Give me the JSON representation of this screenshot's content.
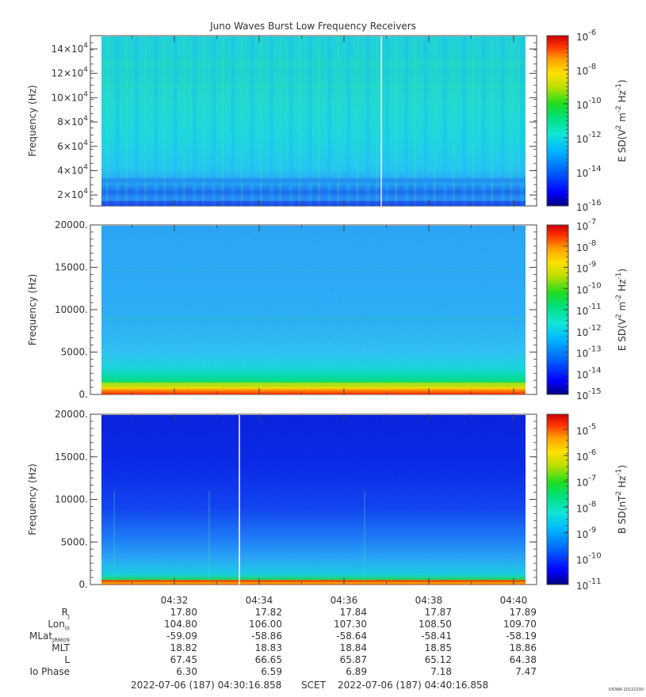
{
  "title": "Juno Waves Burst Low Frequency Receivers",
  "colors": {
    "colormap": [
      "#00007f",
      "#0000ff",
      "#007fff",
      "#00c8ff",
      "#1ee6c8",
      "#00e070",
      "#20e020",
      "#c0e000",
      "#ffe000",
      "#ffa000",
      "#ff3000",
      "#c80000"
    ]
  },
  "chart_data": [
    {
      "type": "heatmap",
      "name": "panel-1",
      "ylabel": "Frequency (Hz)",
      "ylim": [
        11000,
        151000
      ],
      "yticks": [
        {
          "value": 20000,
          "mant": "2×10",
          "exp": "4"
        },
        {
          "value": 40000,
          "mant": "4×10",
          "exp": "4"
        },
        {
          "value": 60000,
          "mant": "6×10",
          "exp": "4"
        },
        {
          "value": 80000,
          "mant": "8×10",
          "exp": "4"
        },
        {
          "value": 100000,
          "mant": "10×10",
          "exp": "4"
        },
        {
          "value": 120000,
          "mant": "12×10",
          "exp": "4"
        },
        {
          "value": 140000,
          "mant": "14×10",
          "exp": "4"
        }
      ],
      "colorbar": {
        "label_parts": [
          [
            "E SD(V",
            "normal"
          ],
          [
            "2",
            "sup"
          ],
          [
            " m",
            "normal"
          ],
          [
            "-2",
            "sup"
          ],
          [
            " Hz",
            "normal"
          ],
          [
            "-1",
            "sup"
          ],
          [
            ")",
            "normal"
          ]
        ],
        "log_range": [
          -16,
          -6
        ],
        "ticks": [
          {
            "base": "10",
            "exp": "-6"
          },
          {
            "base": "10",
            "exp": "-8"
          },
          {
            "base": "10",
            "exp": "-10"
          },
          {
            "base": "10",
            "exp": "-12"
          },
          {
            "base": "10",
            "exp": "-14"
          },
          {
            "base": "10",
            "exp": "-16"
          }
        ]
      }
    },
    {
      "type": "heatmap",
      "name": "panel-2",
      "ylabel": "Frequency (Hz)",
      "ylim": [
        0,
        20000
      ],
      "yticks": [
        {
          "value": 0,
          "label": "0."
        },
        {
          "value": 5000,
          "label": "5000."
        },
        {
          "value": 10000,
          "label": "10000."
        },
        {
          "value": 15000,
          "label": "15000."
        },
        {
          "value": 20000,
          "label": "20000."
        }
      ],
      "colorbar": {
        "label_parts": [
          [
            "E SD(V",
            "normal"
          ],
          [
            "2",
            "sup"
          ],
          [
            " m",
            "normal"
          ],
          [
            "-2",
            "sup"
          ],
          [
            " Hz",
            "normal"
          ],
          [
            "-1",
            "sup"
          ],
          [
            ")",
            "normal"
          ]
        ],
        "log_range": [
          -15,
          -7
        ],
        "ticks": [
          {
            "base": "10",
            "exp": "-7"
          },
          {
            "base": "10",
            "exp": "-8"
          },
          {
            "base": "10",
            "exp": "-9"
          },
          {
            "base": "10",
            "exp": "-10"
          },
          {
            "base": "10",
            "exp": "-11"
          },
          {
            "base": "10",
            "exp": "-12"
          },
          {
            "base": "10",
            "exp": "-13"
          },
          {
            "base": "10",
            "exp": "-14"
          },
          {
            "base": "10",
            "exp": "-15"
          }
        ]
      }
    },
    {
      "type": "heatmap",
      "name": "panel-3",
      "ylabel": "Frequency (Hz)",
      "ylim": [
        0,
        20000
      ],
      "yticks": [
        {
          "value": 0,
          "label": "0."
        },
        {
          "value": 5000,
          "label": "5000."
        },
        {
          "value": 10000,
          "label": "10000."
        },
        {
          "value": 15000,
          "label": "15000."
        },
        {
          "value": 20000,
          "label": "20000."
        }
      ],
      "colorbar": {
        "label_parts": [
          [
            "B SD(nT",
            "normal"
          ],
          [
            "2",
            "sup"
          ],
          [
            " Hz",
            "normal"
          ],
          [
            "-1",
            "sup"
          ],
          [
            ")",
            "normal"
          ]
        ],
        "log_range": [
          -11,
          -4.4
        ],
        "ticks": [
          {
            "base": "10",
            "exp": "-5"
          },
          {
            "base": "10",
            "exp": "-6"
          },
          {
            "base": "10",
            "exp": "-7"
          },
          {
            "base": "10",
            "exp": "-8"
          },
          {
            "base": "10",
            "exp": "-9"
          },
          {
            "base": "10",
            "exp": "-10"
          },
          {
            "base": "10",
            "exp": "-11"
          }
        ]
      }
    }
  ],
  "time_axis": {
    "range_label": [
      "04:30:16.858",
      "04:40:16.858"
    ],
    "ticks": [
      "04:32",
      "04:34",
      "04:36",
      "04:38",
      "04:40"
    ]
  },
  "ephemeris": {
    "labels": [
      {
        "main": "R",
        "sub": "J"
      },
      {
        "main": "Lon",
        "sub": "III"
      },
      {
        "main": "MLat",
        "sub": "JRM09"
      },
      {
        "main": "MLT",
        "sub": ""
      },
      {
        "main": "L",
        "sub": ""
      },
      {
        "main": "Io Phase",
        "sub": ""
      }
    ],
    "rows": [
      [
        "17.80",
        "17.82",
        "17.84",
        "17.87",
        "17.89"
      ],
      [
        "104.80",
        "106.00",
        "107.30",
        "108.50",
        "109.70"
      ],
      [
        "-59.09",
        "-58.86",
        "-58.64",
        "-58.41",
        "-58.19"
      ],
      [
        "18.82",
        "18.83",
        "18.84",
        "18.85",
        "18.86"
      ],
      [
        "67.45",
        "66.65",
        "65.87",
        "65.12",
        "64.38"
      ],
      [
        "6.30",
        "6.59",
        "6.89",
        "7.18",
        "7.47"
      ]
    ]
  },
  "footer": {
    "start": "2022-07-06 (187) 04:30:16.858",
    "scet": "SCET",
    "end": "2022-07-06 (187) 04:40:16.858"
  },
  "stamp": "UIOWA 20221030"
}
